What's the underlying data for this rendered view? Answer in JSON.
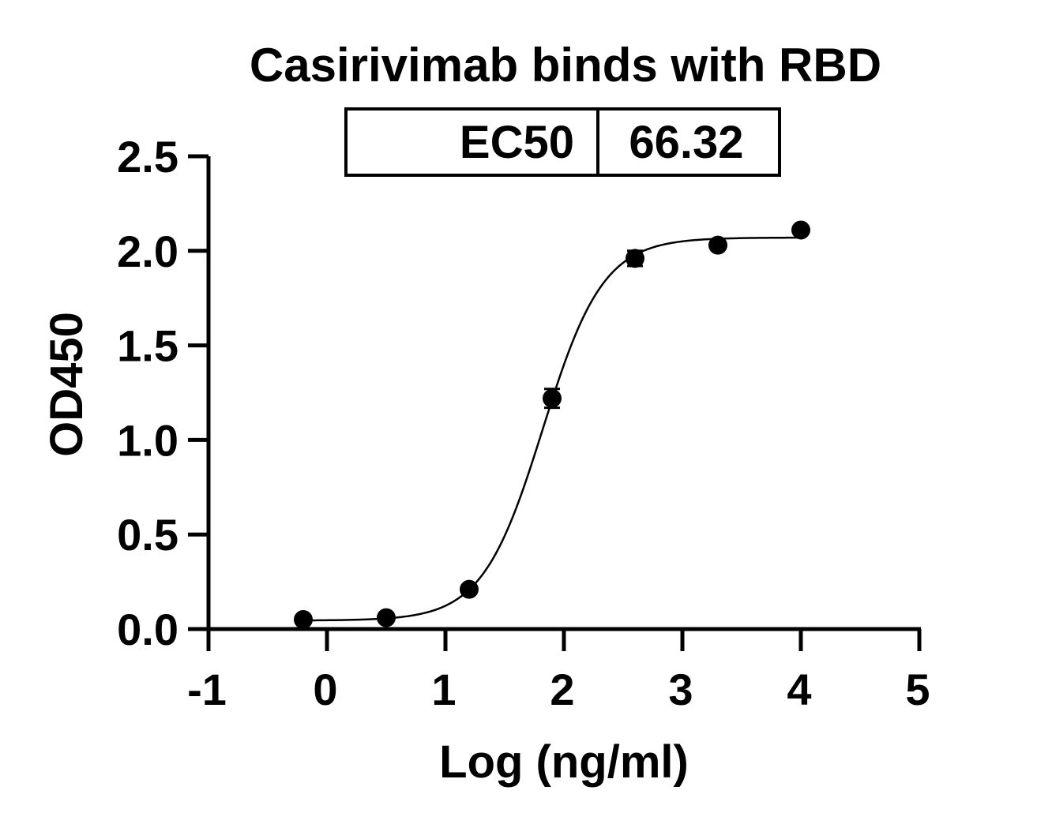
{
  "chart_data": {
    "type": "scatter",
    "title": "Casirivimab binds with RBD",
    "xlabel": "Log (ng/ml)",
    "ylabel": "OD450",
    "xlim": [
      -1,
      5
    ],
    "ylim": [
      0,
      2.5
    ],
    "x_ticks": [
      "-1",
      "0",
      "1",
      "2",
      "3",
      "4",
      "5"
    ],
    "y_ticks": [
      "0.0",
      "0.5",
      "1.0",
      "1.5",
      "2.0",
      "2.5"
    ],
    "grid": false,
    "legend": "none",
    "ec50_table": {
      "label": "EC50",
      "value": "66.32"
    },
    "series": [
      {
        "x": [
          -0.2,
          0.5,
          1.2,
          1.9,
          2.6,
          3.3,
          4.0
        ],
        "y": [
          0.05,
          0.06,
          0.21,
          1.22,
          1.96,
          2.03,
          2.11
        ],
        "error": [
          0,
          0,
          0,
          0.05,
          0.04,
          0,
          0
        ]
      }
    ],
    "fit": {
      "model": "4PL",
      "bottom": 0.045,
      "top": 2.07,
      "log_ec50": 1.8216,
      "hill": 1.7
    },
    "colors": {
      "marker": "#000000",
      "curve": "#000000",
      "axis": "#000000"
    }
  }
}
